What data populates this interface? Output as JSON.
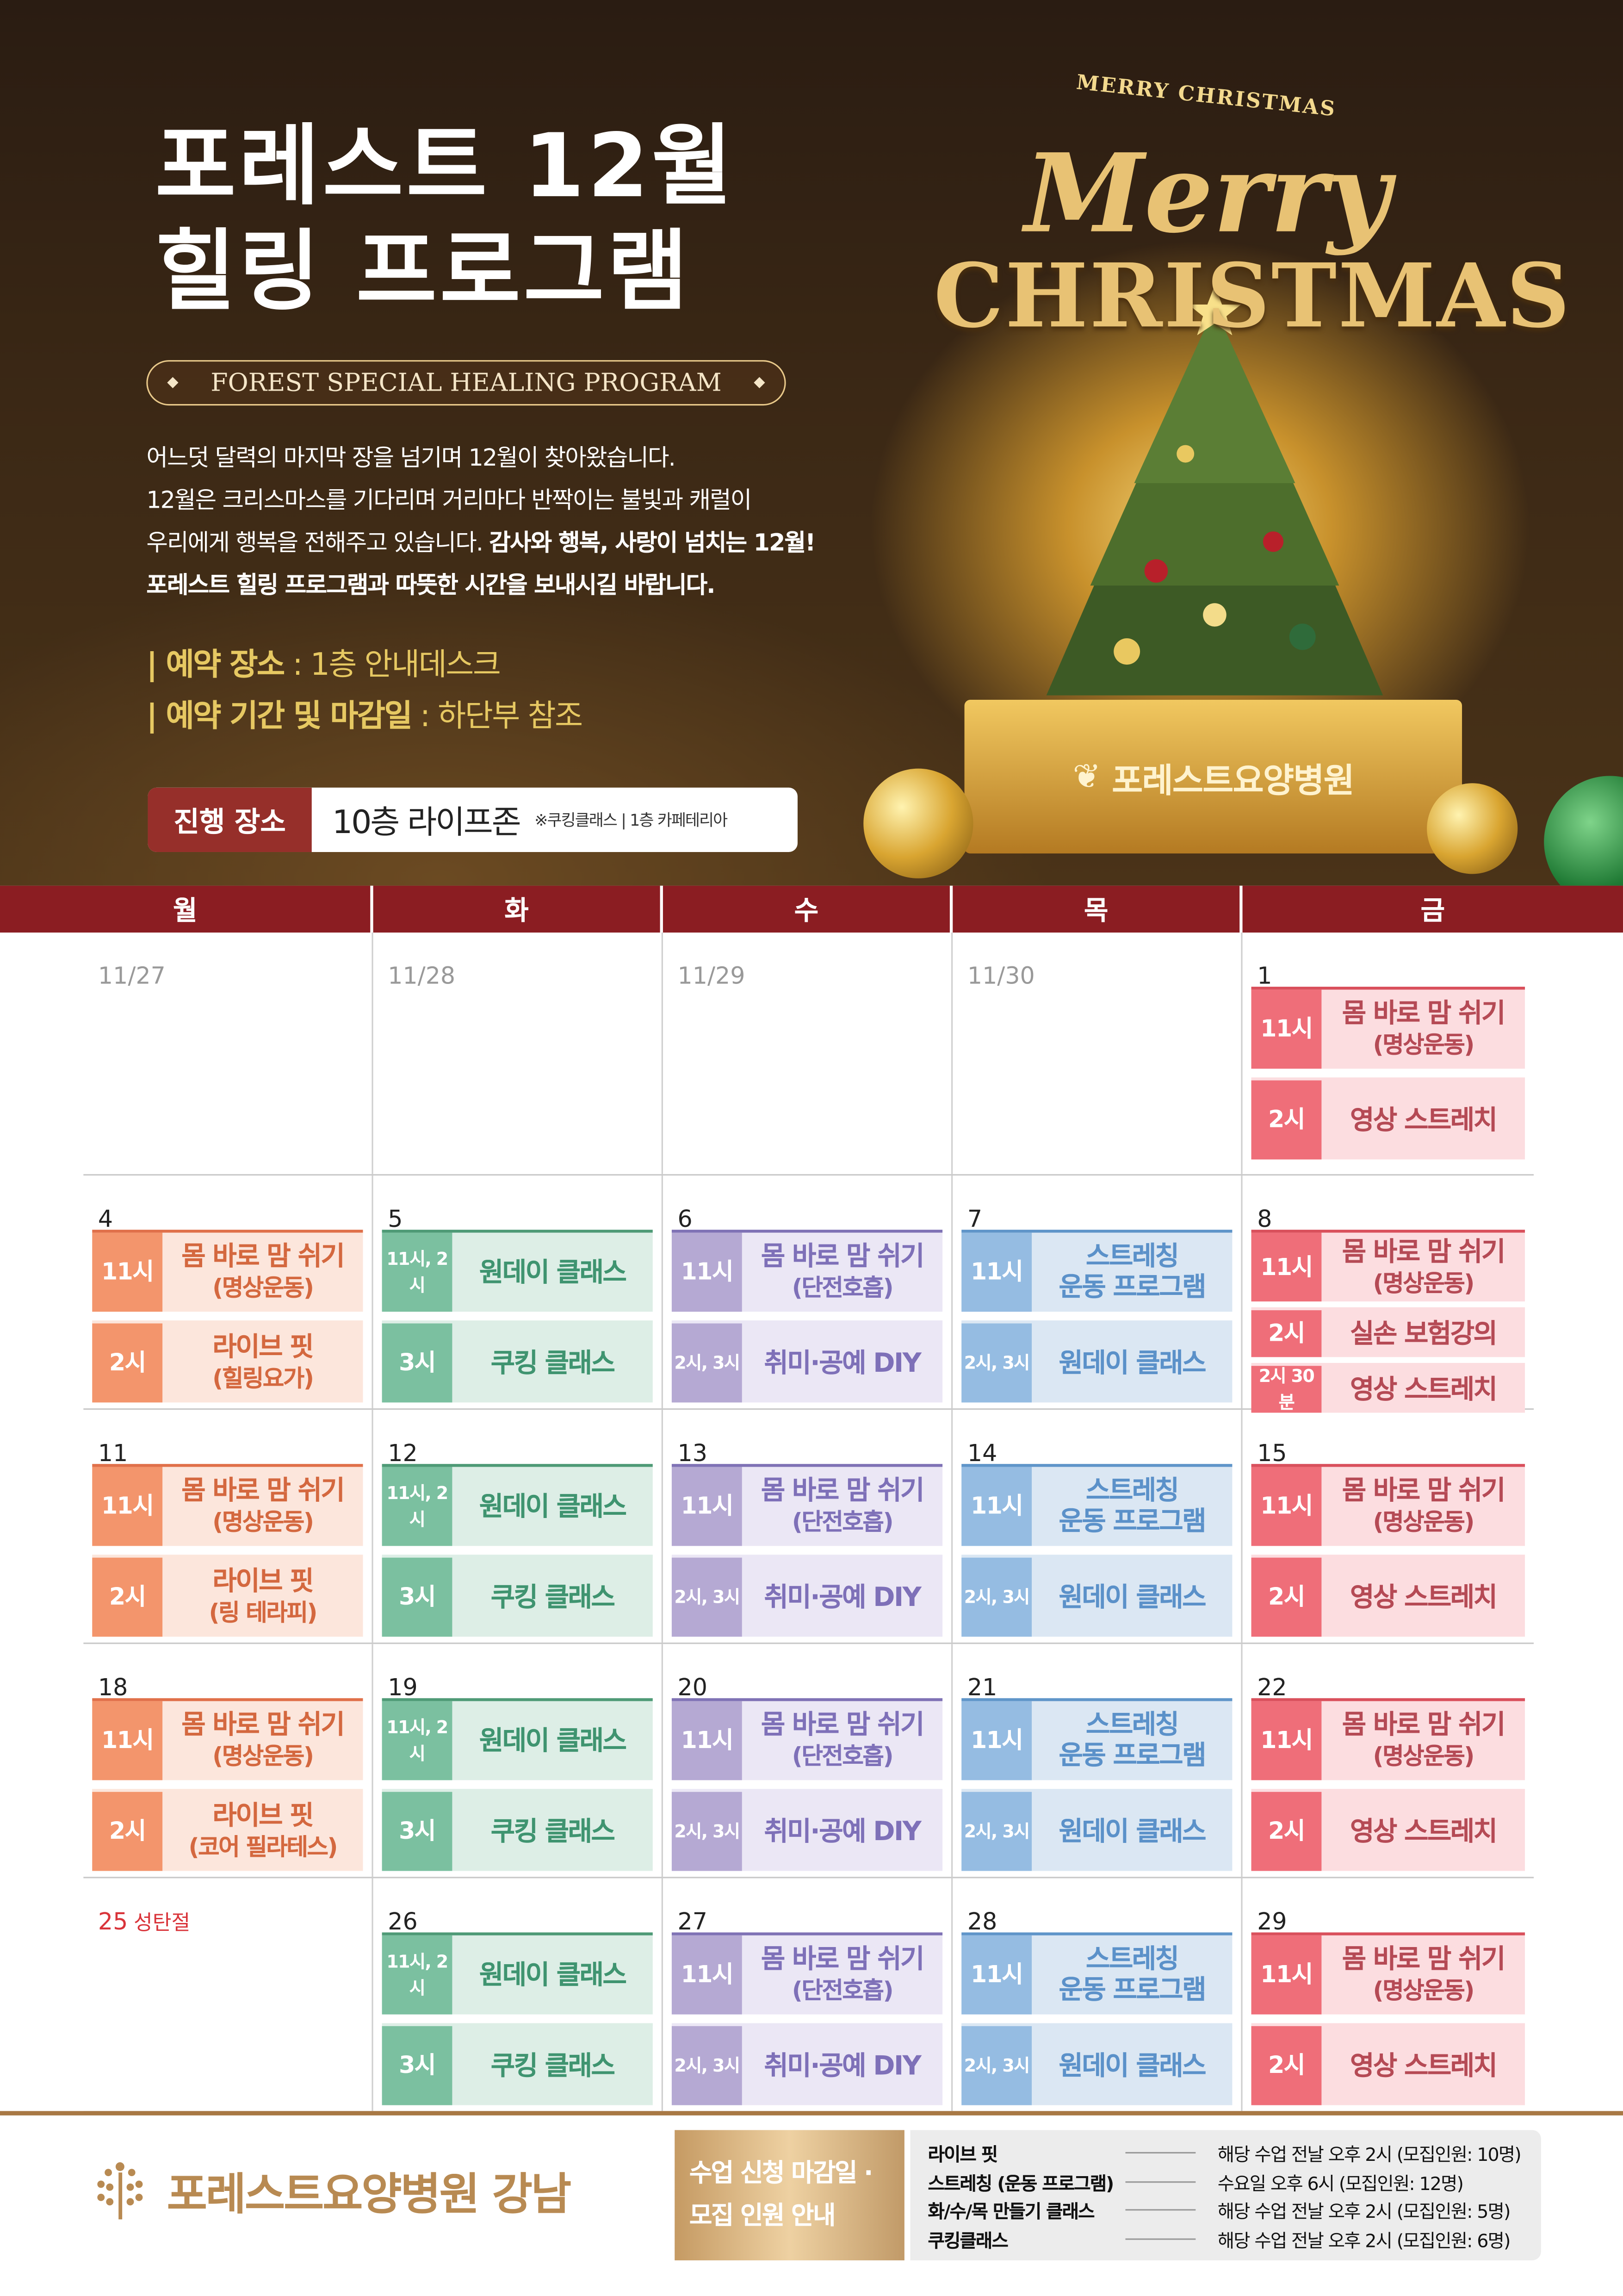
{
  "header": {
    "title_line1": "포레스트 12월",
    "title_line2": "힐링 프로그램",
    "subtitle": "FOREST SPECIAL HEALING PROGRAM",
    "paragraph": [
      {
        "normal": "어느덧 달력의 마지막 장을 넘기며 12월이 찾아왔습니다.",
        "bold": ""
      },
      {
        "normal": "12월은 크리스마스를 기다리며 거리마다 반짝이는 불빛과 캐럴이",
        "bold": ""
      },
      {
        "normal": "우리에게 행복을 전해주고 있습니다. ",
        "bold": "감사와 행복, 사랑이 넘치는 12월!"
      },
      {
        "normal": "",
        "bold": "포레스트 힐링 프로그램과 따뜻한 시간을 보내시길 바랍니다."
      }
    ],
    "reservation_place_label": "| 예약 장소",
    "reservation_place_value": " : 1층 안내데스크",
    "reservation_period_label": "| 예약 기간 및 마감일",
    "reservation_period_value": " : 하단부 참조",
    "venue_label": "진행 장소",
    "venue_value": "10층 라이프존",
    "venue_note": "※쿠킹클래스 | 1층 카페테리아",
    "xmas_small": "MERRY CHRISTMAS",
    "xmas_script": "Merry",
    "xmas_big": "CHRISTMAS",
    "box_brand": "포레스트요양병원"
  },
  "weekdays": [
    "월",
    "화",
    "수",
    "목",
    "금"
  ],
  "colors": {
    "orange": {
      "tag": "#f3956c",
      "bg": "#fce6dc",
      "text": "#d4683f",
      "line": "#e0704a"
    },
    "green": {
      "tag": "#7bc0a0",
      "bg": "#ddeee6",
      "text": "#3f9470",
      "line": "#4e9a76"
    },
    "purple": {
      "tag": "#b5a9d3",
      "bg": "#ebe7f5",
      "text": "#7e70b8",
      "line": "#7f72b5"
    },
    "blue": {
      "tag": "#95bce2",
      "bg": "#dbe7f3",
      "text": "#5b91c9",
      "line": "#5f95c9"
    },
    "red": {
      "tag": "#ef6e79",
      "bg": "#fcdde0",
      "text": "#b54a55",
      "line": "#d9505c"
    },
    "header_bar": "#8b1d22"
  },
  "weeks": [
    [
      {
        "date": "11/27",
        "past": true,
        "events": []
      },
      {
        "date": "11/28",
        "past": true,
        "events": []
      },
      {
        "date": "11/29",
        "past": true,
        "events": []
      },
      {
        "date": "11/30",
        "past": true,
        "events": []
      },
      {
        "date": "1",
        "events": [
          {
            "time": "11시",
            "title": "몸 바로 맘 쉬기",
            "sub": "(명상운동)",
            "color": "red"
          },
          {
            "time": "2시",
            "title": "영상 스트레치",
            "sub": "",
            "color": "red"
          }
        ]
      }
    ],
    [
      {
        "date": "4",
        "events": [
          {
            "time": "11시",
            "title": "몸 바로 맘 쉬기",
            "sub": "(명상운동)",
            "color": "orange"
          },
          {
            "time": "2시",
            "title": "라이브 핏",
            "sub": "(힐링요가)",
            "color": "orange"
          }
        ]
      },
      {
        "date": "5",
        "events": [
          {
            "time": "11시, 2시",
            "title": "원데이 클래스",
            "sub": "",
            "color": "green"
          },
          {
            "time": "3시",
            "title": "쿠킹 클래스",
            "sub": "",
            "color": "green"
          }
        ]
      },
      {
        "date": "6",
        "events": [
          {
            "time": "11시",
            "title": "몸 바로 맘 쉬기",
            "sub": "(단전호흡)",
            "color": "purple"
          },
          {
            "time": "2시, 3시",
            "title": "취미·공예 DIY",
            "sub": "",
            "color": "purple"
          }
        ]
      },
      {
        "date": "7",
        "events": [
          {
            "time": "11시",
            "title": "스트레칭",
            "sub": "운동 프로그램",
            "color": "blue"
          },
          {
            "time": "2시, 3시",
            "title": "원데이 클래스",
            "sub": "",
            "color": "blue"
          }
        ]
      },
      {
        "date": "8",
        "events": [
          {
            "time": "11시",
            "title": "몸 바로 맘 쉬기",
            "sub": "(명상운동)",
            "color": "red"
          },
          {
            "time": "2시",
            "title": "실손 보험강의",
            "sub": "",
            "color": "red"
          },
          {
            "time": "2시 30분",
            "title": "영상 스트레치",
            "sub": "",
            "color": "red"
          }
        ]
      }
    ],
    [
      {
        "date": "11",
        "events": [
          {
            "time": "11시",
            "title": "몸 바로 맘 쉬기",
            "sub": "(명상운동)",
            "color": "orange"
          },
          {
            "time": "2시",
            "title": "라이브 핏",
            "sub": "(링 테라피)",
            "color": "orange"
          }
        ]
      },
      {
        "date": "12",
        "events": [
          {
            "time": "11시, 2시",
            "title": "원데이 클래스",
            "sub": "",
            "color": "green"
          },
          {
            "time": "3시",
            "title": "쿠킹 클래스",
            "sub": "",
            "color": "green"
          }
        ]
      },
      {
        "date": "13",
        "events": [
          {
            "time": "11시",
            "title": "몸 바로 맘 쉬기",
            "sub": "(단전호흡)",
            "color": "purple"
          },
          {
            "time": "2시, 3시",
            "title": "취미·공예 DIY",
            "sub": "",
            "color": "purple"
          }
        ]
      },
      {
        "date": "14",
        "events": [
          {
            "time": "11시",
            "title": "스트레칭",
            "sub": "운동 프로그램",
            "color": "blue"
          },
          {
            "time": "2시, 3시",
            "title": "원데이 클래스",
            "sub": "",
            "color": "blue"
          }
        ]
      },
      {
        "date": "15",
        "events": [
          {
            "time": "11시",
            "title": "몸 바로 맘 쉬기",
            "sub": "(명상운동)",
            "color": "red"
          },
          {
            "time": "2시",
            "title": "영상 스트레치",
            "sub": "",
            "color": "red"
          }
        ]
      }
    ],
    [
      {
        "date": "18",
        "events": [
          {
            "time": "11시",
            "title": "몸 바로 맘 쉬기",
            "sub": "(명상운동)",
            "color": "orange"
          },
          {
            "time": "2시",
            "title": "라이브 핏",
            "sub": "(코어 필라테스)",
            "color": "orange"
          }
        ]
      },
      {
        "date": "19",
        "events": [
          {
            "time": "11시, 2시",
            "title": "원데이 클래스",
            "sub": "",
            "color": "green"
          },
          {
            "time": "3시",
            "title": "쿠킹 클래스",
            "sub": "",
            "color": "green"
          }
        ]
      },
      {
        "date": "20",
        "events": [
          {
            "time": "11시",
            "title": "몸 바로 맘 쉬기",
            "sub": "(단전호흡)",
            "color": "purple"
          },
          {
            "time": "2시, 3시",
            "title": "취미·공예 DIY",
            "sub": "",
            "color": "purple"
          }
        ]
      },
      {
        "date": "21",
        "events": [
          {
            "time": "11시",
            "title": "스트레칭",
            "sub": "운동 프로그램",
            "color": "blue"
          },
          {
            "time": "2시, 3시",
            "title": "원데이 클래스",
            "sub": "",
            "color": "blue"
          }
        ]
      },
      {
        "date": "22",
        "events": [
          {
            "time": "11시",
            "title": "몸 바로 맘 쉬기",
            "sub": "(명상운동)",
            "color": "red"
          },
          {
            "time": "2시",
            "title": "영상 스트레치",
            "sub": "",
            "color": "red"
          }
        ]
      }
    ],
    [
      {
        "date": "25",
        "holiday": "성탄절",
        "events": []
      },
      {
        "date": "26",
        "events": [
          {
            "time": "11시, 2시",
            "title": "원데이 클래스",
            "sub": "",
            "color": "green"
          },
          {
            "time": "3시",
            "title": "쿠킹 클래스",
            "sub": "",
            "color": "green"
          }
        ]
      },
      {
        "date": "27",
        "events": [
          {
            "time": "11시",
            "title": "몸 바로 맘 쉬기",
            "sub": "(단전호흡)",
            "color": "purple"
          },
          {
            "time": "2시, 3시",
            "title": "취미·공예 DIY",
            "sub": "",
            "color": "purple"
          }
        ]
      },
      {
        "date": "28",
        "events": [
          {
            "time": "11시",
            "title": "스트레칭",
            "sub": "운동 프로그램",
            "color": "blue"
          },
          {
            "time": "2시, 3시",
            "title": "원데이 클래스",
            "sub": "",
            "color": "blue"
          }
        ]
      },
      {
        "date": "29",
        "events": [
          {
            "time": "11시",
            "title": "몸 바로 맘 쉬기",
            "sub": "(명상운동)",
            "color": "red"
          },
          {
            "time": "2시",
            "title": "영상 스트레치",
            "sub": "",
            "color": "red"
          }
        ]
      }
    ]
  ],
  "footer": {
    "brand": "포레스트요양병원 강남",
    "deadline_title_line1": "수업 신청 마감일 ·",
    "deadline_title_line2": "모집 인원 안내",
    "deadlines": [
      {
        "program": "라이브 핏",
        "deadline": "해당 수업 전날 오후 2시 (모집인원: 10명)"
      },
      {
        "program": "스트레칭 (운동 프로그램)",
        "deadline": "수요일 오후 6시 (모집인원: 12명)"
      },
      {
        "program": "화/수/목 만들기 클래스",
        "deadline": "해당 수업 전날 오후 2시 (모집인원: 5명)"
      },
      {
        "program": "쿠킹클래스",
        "deadline": "해당 수업 전날 오후 2시 (모집인원: 6명)"
      }
    ]
  }
}
